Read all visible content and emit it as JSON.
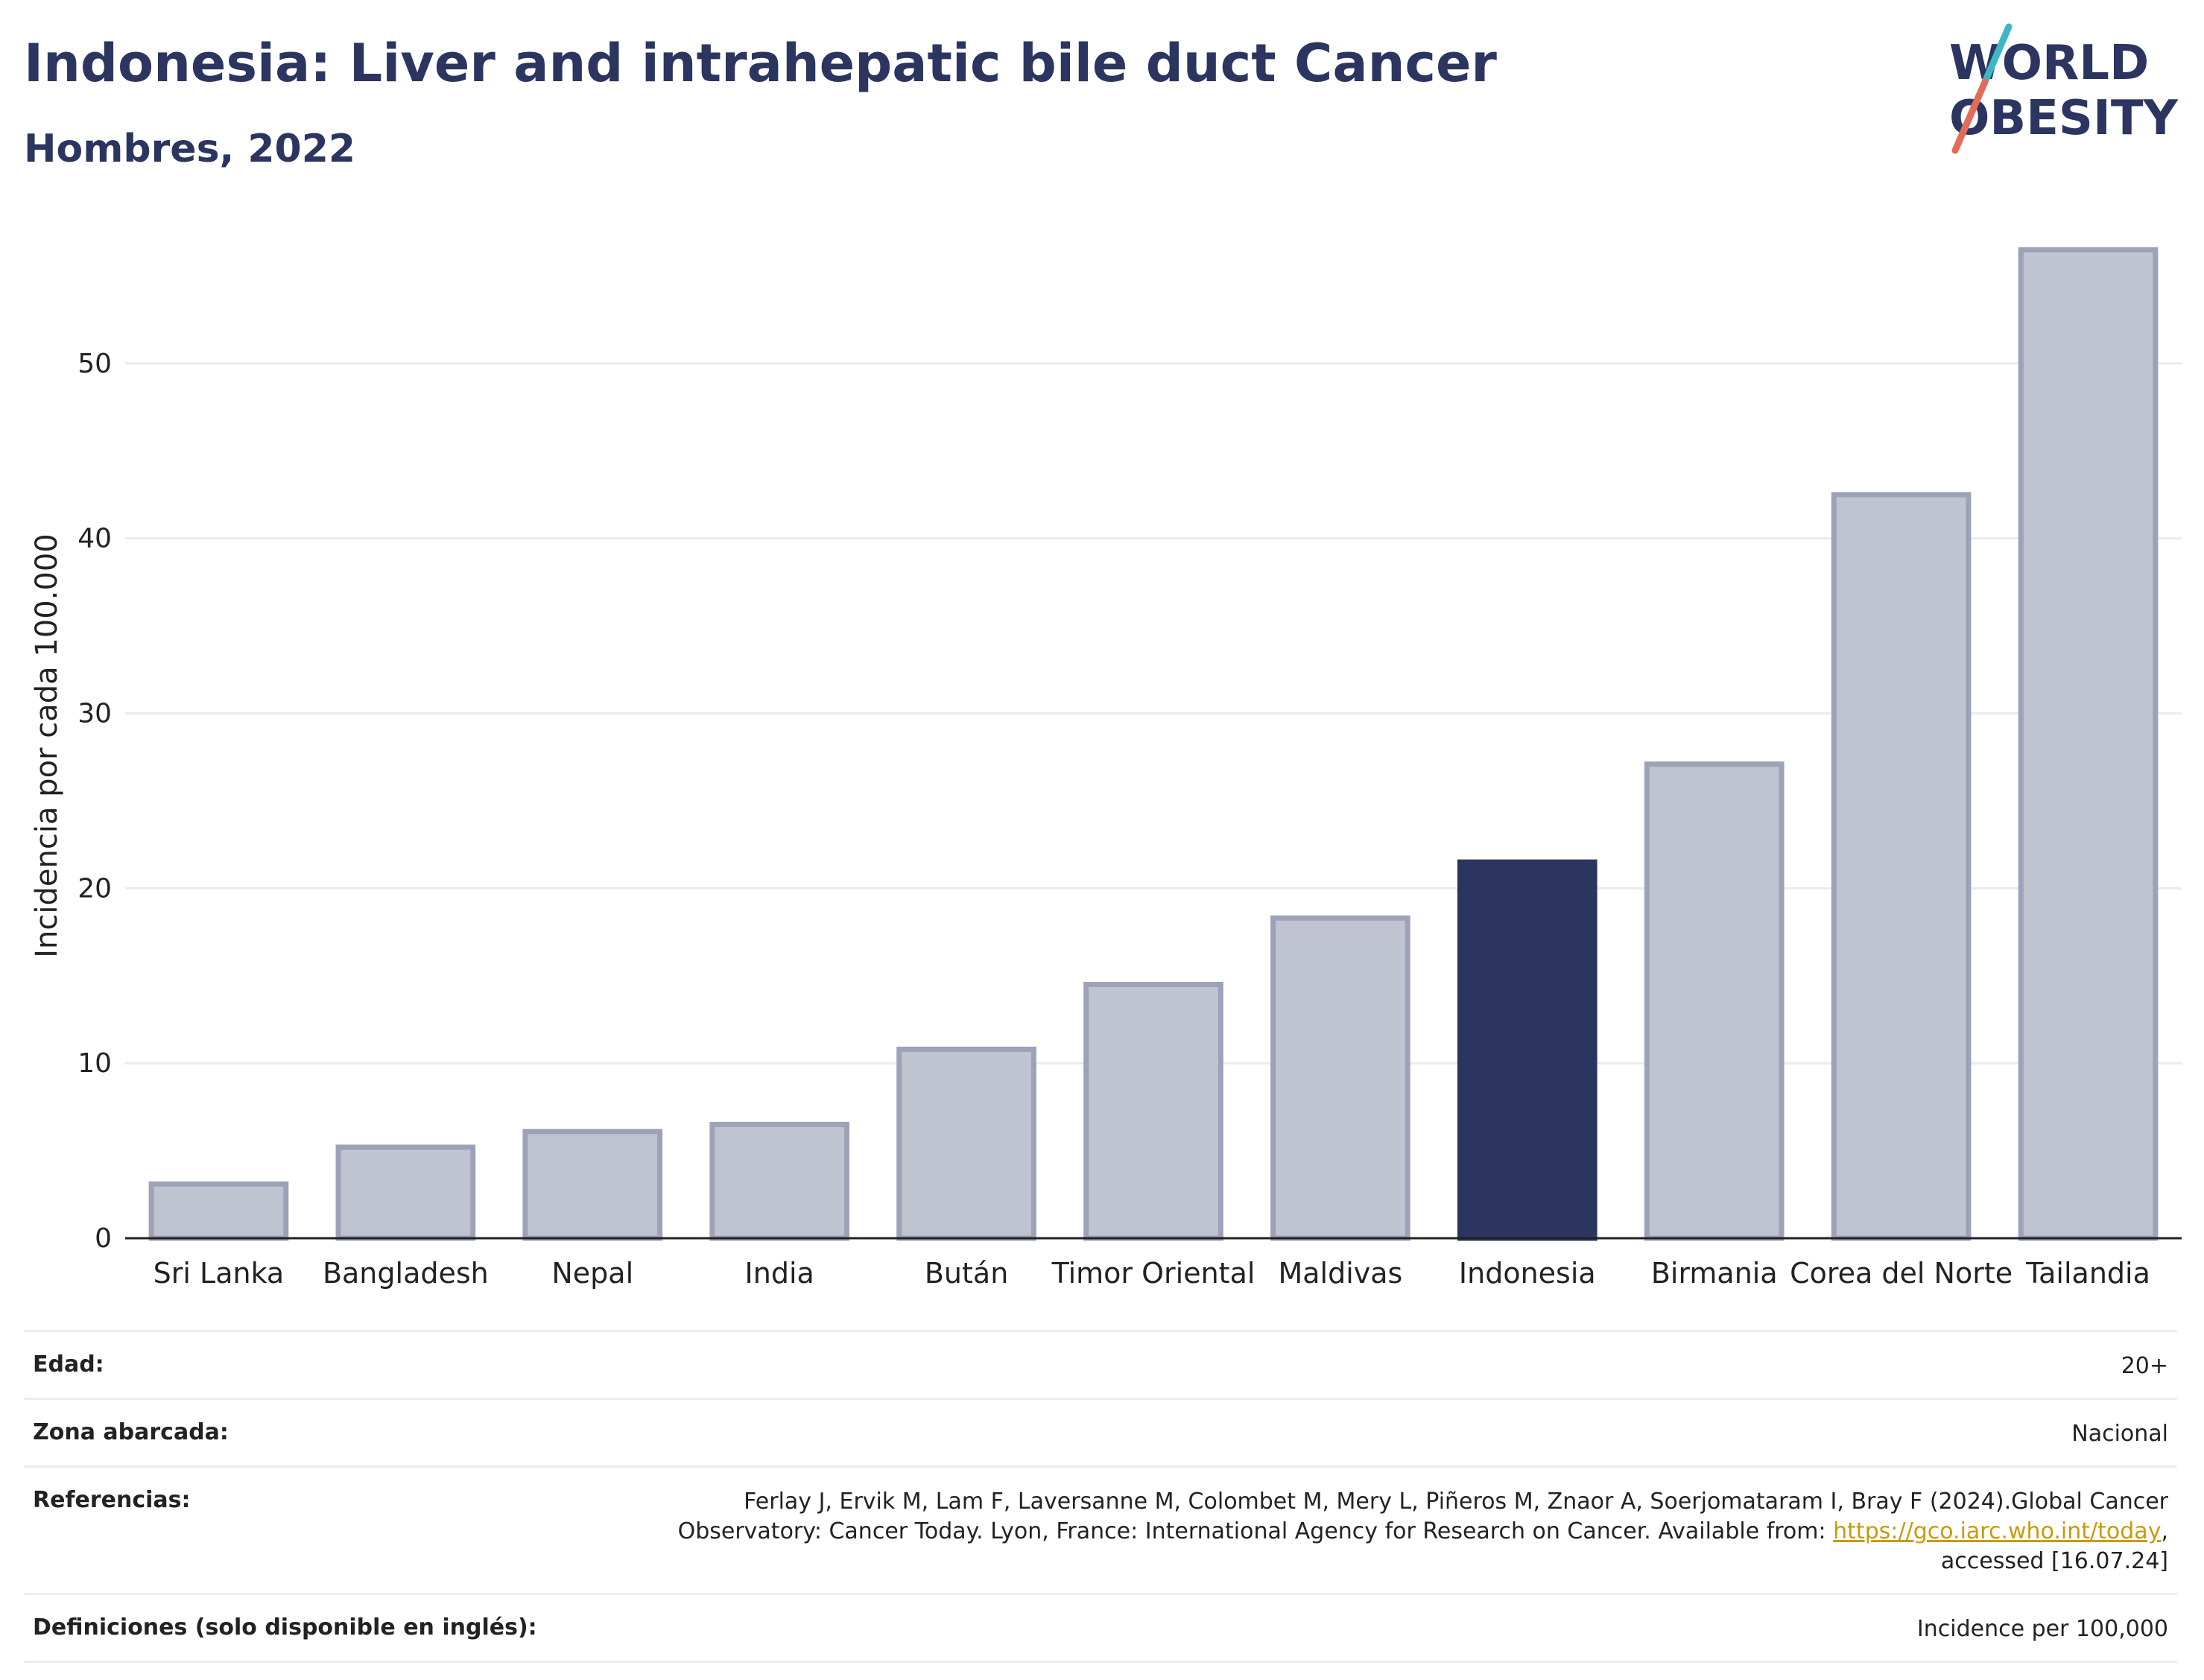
{
  "header": {
    "title": "Indonesia: Liver and intrahepatic bile duct Cancer",
    "subtitle": "Hombres, 2022"
  },
  "logo": {
    "line1": "WORLD",
    "line2": "OBESITY"
  },
  "colors": {
    "highlight": "#2b3560",
    "bar_fill": "#c0c3d0",
    "bar_stroke": "#9da2b8",
    "grid": "#e8ebf0",
    "accent_teal": "#3bb8c3",
    "accent_coral": "#e36b5a"
  },
  "chart_data": {
    "type": "bar",
    "categories": [
      "Sri Lanka",
      "Bangladesh",
      "Nepal",
      "India",
      "Bután",
      "Timor Oriental",
      "Maldivas",
      "Indonesia",
      "Birmania",
      "Corea del Norte",
      "Tailandia"
    ],
    "values": [
      3.1,
      5.2,
      6.1,
      6.5,
      10.8,
      14.5,
      18.3,
      21.5,
      27.1,
      42.5,
      56.5
    ],
    "highlight": "Indonesia",
    "ylabel": "Incidencia por cada 100.000",
    "ylim": [
      0,
      58
    ],
    "yticks": [
      0,
      10,
      20,
      30,
      40,
      50
    ],
    "grid": true
  },
  "info": {
    "rows": [
      {
        "label": "Edad:",
        "value": "20+"
      },
      {
        "label": "Zona abarcada:",
        "value": "Nacional"
      }
    ],
    "references": {
      "label": "Referencias:",
      "line1": "Ferlay J, Ervik M, Lam F, Laversanne M, Colombet M, Mery L, Piñeros M, Znaor A, Soerjomataram I, Bray F (2024).Global Cancer",
      "line2_prefix": "Observatory: Cancer Today. Lyon, France: International Agency for Research on Cancer. Available from: ",
      "link": "https://gco.iarc.who.int/today",
      "line2_suffix": ",",
      "line3": "accessed [16.07.24]"
    },
    "definitions": {
      "label": "Definiciones (solo disponible en inglés):",
      "value": "Incidence per 100,000"
    }
  }
}
